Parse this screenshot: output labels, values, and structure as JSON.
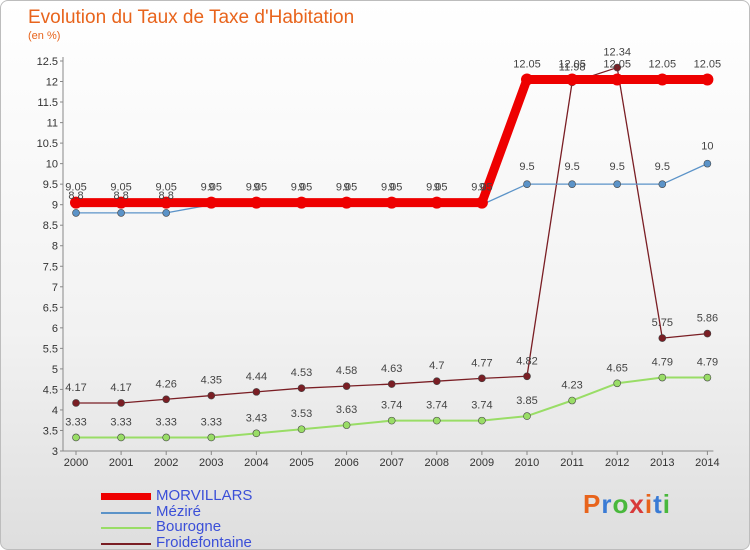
{
  "title": "Evolution du Taux de Taxe d'Habitation",
  "unit_label": "(en %)",
  "logo_text": "Proxiti",
  "chart_data": {
    "type": "line",
    "x": [
      "2000",
      "2001",
      "2002",
      "2003",
      "2004",
      "2005",
      "2006",
      "2007",
      "2008",
      "2009",
      "2010",
      "2011",
      "2012",
      "2013",
      "2014"
    ],
    "ylim": [
      3,
      12.5
    ],
    "ytick_step": 0.5,
    "grid": false,
    "legend_position": "bottom-left",
    "series": [
      {
        "name": "MORVILLARS",
        "color": "#ee0000",
        "values": [
          9.05,
          9.05,
          9.05,
          9.05,
          9.05,
          9.05,
          9.05,
          9.05,
          9.05,
          9.05,
          12.05,
          12.05,
          12.05,
          12.05,
          12.05
        ],
        "labels": [
          "9.05",
          "9.05",
          "9.05",
          "9.05",
          "9.05",
          "9.05",
          "9.05",
          "9.05",
          "9.05",
          "9.05",
          "12.05",
          "12.05",
          "12.05",
          "12.05",
          "12.05"
        ]
      },
      {
        "name": "Méziré",
        "color": "#5b93c8",
        "values": [
          8.8,
          8.8,
          8.8,
          9,
          9,
          9,
          9,
          9,
          9,
          9,
          9.5,
          9.5,
          9.5,
          9.5,
          10
        ],
        "labels": [
          "8.8",
          "8.8",
          "8.8",
          "9",
          "9",
          "9",
          "9",
          "9",
          "9",
          "9",
          "9.5",
          "9.5",
          "9.5",
          "9.5",
          "10"
        ]
      },
      {
        "name": "Bourogne",
        "color": "#99dd66",
        "values": [
          3.33,
          3.33,
          3.33,
          3.33,
          3.43,
          3.53,
          3.63,
          3.74,
          3.74,
          3.74,
          3.85,
          4.23,
          4.65,
          4.79,
          4.79
        ],
        "labels": [
          "3.33",
          "3.33",
          "3.33",
          "3.33",
          "3.43",
          "3.53",
          "3.63",
          "3.74",
          "3.74",
          "3.74",
          "3.85",
          "4.23",
          "4.65",
          "4.79",
          "4.79"
        ]
      },
      {
        "name": "Froidefontaine",
        "color": "#7a1e24",
        "values": [
          4.17,
          4.17,
          4.26,
          4.35,
          4.44,
          4.53,
          4.58,
          4.63,
          4.7,
          4.77,
          4.82,
          11.98,
          12.34,
          5.75,
          5.86
        ],
        "labels": [
          "4.17",
          "4.17",
          "4.26",
          "4.35",
          "4.44",
          "4.53",
          "4.58",
          "4.63",
          "4.7",
          "4.77",
          "4.82",
          "11.98",
          "12.34",
          "5.75",
          "5.86"
        ]
      }
    ]
  }
}
